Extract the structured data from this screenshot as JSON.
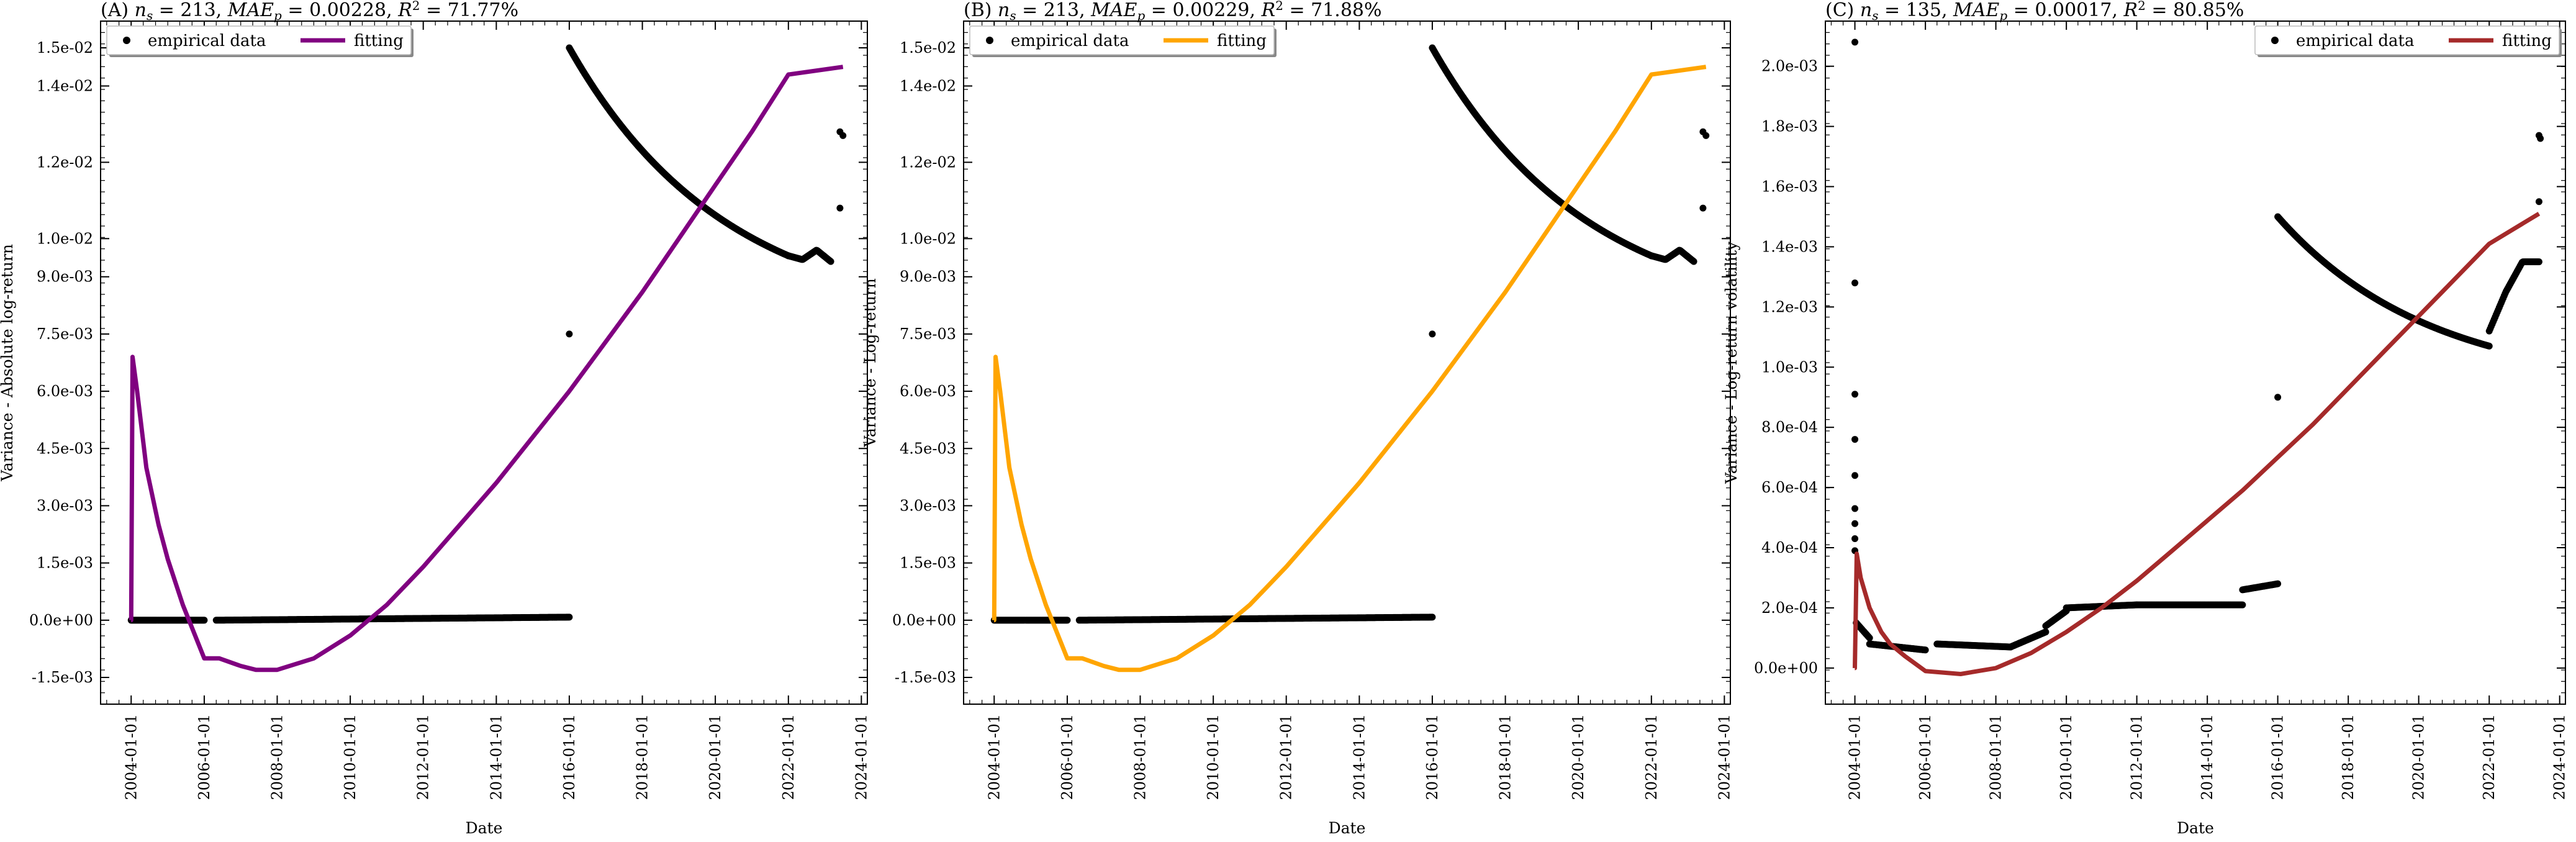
{
  "chart_data": [
    {
      "type": "scatter",
      "panel": "A",
      "title": "(A) n_s = 213, MAE_p = 0.00228, R² = 71.77%",
      "title_parts": {
        "prefix": "(A) ",
        "ns": "213",
        "mae": "0.00228",
        "r2": "71.77%"
      },
      "xlabel": "Date",
      "ylabel": "Variance - Absolute log-return",
      "x_ticks": [
        "2004-01-01",
        "2006-01-01",
        "2008-01-01",
        "2010-01-01",
        "2012-01-01",
        "2014-01-01",
        "2016-01-01",
        "2018-01-01",
        "2020-01-01",
        "2022-01-01",
        "2024-01-01"
      ],
      "y_ticks": [
        "-1.5e-03",
        "0.0e+00",
        "1.5e-03",
        "3.0e-03",
        "4.5e-03",
        "6.0e-03",
        "7.5e-03",
        "9.0e-03",
        "1.0e-02",
        "1.2e-02",
        "1.4e-02",
        "1.5e-02"
      ],
      "ylim": [
        -0.0022,
        0.0157
      ],
      "xlim": [
        "2003-03-01",
        "2024-03-01"
      ],
      "legend": {
        "placement": "top-left",
        "entries": [
          "empirical data",
          "fitting"
        ]
      },
      "fit_color": "#800080",
      "series": [
        {
          "name": "empirical data",
          "kind": "points",
          "segments": [
            {
              "from": "2004-01-01",
              "to": "2006-01-01",
              "y0": 0.0,
              "y1": 0.0
            },
            {
              "from": "2006-05-01",
              "to": "2016-01-01",
              "y0": 0.0,
              "y1": 8e-05
            }
          ],
          "decay": {
            "from": "2016-01-01",
            "to": "2022-01-01",
            "y0": 0.015,
            "y1": 0.00955,
            "end_from": "2022-01-01",
            "end_to": "2023-03-01",
            "end_y": [
              0.00955,
              0.00945,
              0.0097,
              0.0094
            ]
          },
          "isolated": [
            {
              "x": "2016-01-01",
              "y": 0.0075
            },
            {
              "x": "2023-06-01",
              "y": 0.0128
            },
            {
              "x": "2023-06-01",
              "y": 0.0108
            },
            {
              "x": "2023-07-01",
              "y": 0.0127
            }
          ]
        },
        {
          "name": "fitting",
          "kind": "line",
          "points": [
            [
              "2003-12-31",
              0.0
            ],
            [
              "2004-01-01",
              0.0
            ],
            [
              "2004-01-15",
              0.0069
            ],
            [
              "2004-03-01",
              0.006
            ],
            [
              "2004-06-01",
              0.004
            ],
            [
              "2004-10-01",
              0.0025
            ],
            [
              "2005-01-01",
              0.0016
            ],
            [
              "2005-06-01",
              0.0004
            ],
            [
              "2006-01-01",
              -0.001
            ],
            [
              "2006-06-01",
              -0.001
            ],
            [
              "2007-01-01",
              -0.0012
            ],
            [
              "2007-06-01",
              -0.0013
            ],
            [
              "2008-01-01",
              -0.0013
            ],
            [
              "2009-01-01",
              -0.001
            ],
            [
              "2010-01-01",
              -0.0004
            ],
            [
              "2011-01-01",
              0.0004
            ],
            [
              "2012-01-01",
              0.0014
            ],
            [
              "2013-01-01",
              0.0025
            ],
            [
              "2014-01-01",
              0.0036
            ],
            [
              "2015-01-01",
              0.0048
            ],
            [
              "2016-01-01",
              0.006
            ],
            [
              "2017-01-01",
              0.0073
            ],
            [
              "2018-01-01",
              0.0086
            ],
            [
              "2019-01-01",
              0.01
            ],
            [
              "2020-01-01",
              0.0114
            ],
            [
              "2021-01-01",
              0.0128
            ],
            [
              "2022-01-01",
              0.0143
            ],
            [
              "2023-07-01",
              0.0145
            ]
          ]
        }
      ]
    },
    {
      "type": "scatter",
      "panel": "B",
      "title": "(B) n_s = 213, MAE_p = 0.00229, R² = 71.88%",
      "title_parts": {
        "prefix": "(B) ",
        "ns": "213",
        "mae": "0.00229",
        "r2": "71.88%"
      },
      "xlabel": "Date",
      "ylabel": "Variance - Log-return",
      "x_ticks": [
        "2004-01-01",
        "2006-01-01",
        "2008-01-01",
        "2010-01-01",
        "2012-01-01",
        "2014-01-01",
        "2016-01-01",
        "2018-01-01",
        "2020-01-01",
        "2022-01-01",
        "2024-01-01"
      ],
      "y_ticks": [
        "-1.5e-03",
        "0.0e+00",
        "1.5e-03",
        "3.0e-03",
        "4.5e-03",
        "6.0e-03",
        "7.5e-03",
        "9.0e-03",
        "1.0e-02",
        "1.2e-02",
        "1.4e-02",
        "1.5e-02"
      ],
      "ylim": [
        -0.0022,
        0.0157
      ],
      "xlim": [
        "2003-03-01",
        "2024-03-01"
      ],
      "legend": {
        "placement": "top-left",
        "entries": [
          "empirical data",
          "fitting"
        ]
      },
      "fit_color": "#FFA500",
      "series": [
        {
          "name": "empirical data",
          "kind": "points",
          "segments": [
            {
              "from": "2004-01-01",
              "to": "2006-01-01",
              "y0": 0.0,
              "y1": 0.0
            },
            {
              "from": "2006-05-01",
              "to": "2016-01-01",
              "y0": 0.0,
              "y1": 8e-05
            }
          ],
          "decay": {
            "from": "2016-01-01",
            "to": "2022-01-01",
            "y0": 0.015,
            "y1": 0.00955,
            "end_from": "2022-01-01",
            "end_to": "2023-03-01",
            "end_y": [
              0.00955,
              0.00945,
              0.0097,
              0.0094
            ]
          },
          "isolated": [
            {
              "x": "2016-01-01",
              "y": 0.0075
            },
            {
              "x": "2023-06-01",
              "y": 0.0128
            },
            {
              "x": "2023-06-01",
              "y": 0.0108
            },
            {
              "x": "2023-07-01",
              "y": 0.0127
            }
          ]
        },
        {
          "name": "fitting",
          "kind": "line",
          "points": [
            [
              "2003-12-31",
              0.0
            ],
            [
              "2004-01-01",
              0.0
            ],
            [
              "2004-01-15",
              0.0069
            ],
            [
              "2004-03-01",
              0.006
            ],
            [
              "2004-06-01",
              0.004
            ],
            [
              "2004-10-01",
              0.0025
            ],
            [
              "2005-01-01",
              0.0016
            ],
            [
              "2005-06-01",
              0.0004
            ],
            [
              "2006-01-01",
              -0.001
            ],
            [
              "2006-06-01",
              -0.001
            ],
            [
              "2007-01-01",
              -0.0012
            ],
            [
              "2007-06-01",
              -0.0013
            ],
            [
              "2008-01-01",
              -0.0013
            ],
            [
              "2009-01-01",
              -0.001
            ],
            [
              "2010-01-01",
              -0.0004
            ],
            [
              "2011-01-01",
              0.0004
            ],
            [
              "2012-01-01",
              0.0014
            ],
            [
              "2013-01-01",
              0.0025
            ],
            [
              "2014-01-01",
              0.0036
            ],
            [
              "2015-01-01",
              0.0048
            ],
            [
              "2016-01-01",
              0.006
            ],
            [
              "2017-01-01",
              0.0073
            ],
            [
              "2018-01-01",
              0.0086
            ],
            [
              "2019-01-01",
              0.01
            ],
            [
              "2020-01-01",
              0.0114
            ],
            [
              "2021-01-01",
              0.0128
            ],
            [
              "2022-01-01",
              0.0143
            ],
            [
              "2023-07-01",
              0.0145
            ]
          ]
        }
      ]
    },
    {
      "type": "scatter",
      "panel": "C",
      "title": "(C) n_s = 135, MAE_p = 0.00017, R² = 80.85%",
      "title_parts": {
        "prefix": "(C) ",
        "ns": "135",
        "mae": "0.00017",
        "r2": "80.85%"
      },
      "xlabel": "Date",
      "ylabel": "Variance - Log-return volatility",
      "x_ticks": [
        "2004-01-01",
        "2006-01-01",
        "2008-01-01",
        "2010-01-01",
        "2012-01-01",
        "2014-01-01",
        "2016-01-01",
        "2018-01-01",
        "2020-01-01",
        "2022-01-01",
        "2024-01-01"
      ],
      "y_ticks": [
        "0.0e+00",
        "2.0e-04",
        "4.0e-04",
        "6.0e-04",
        "8.0e-04",
        "1.0e-03",
        "1.2e-03",
        "1.4e-03",
        "1.6e-03",
        "1.8e-03",
        "2.0e-03"
      ],
      "ylim": [
        -0.00012,
        0.00215
      ],
      "xlim": [
        "2003-03-01",
        "2024-03-01"
      ],
      "legend": {
        "placement": "top-right",
        "entries": [
          "empirical data",
          "fitting"
        ]
      },
      "fit_color": "#A52A2A",
      "series": [
        {
          "name": "empirical data",
          "kind": "points",
          "segments": [
            {
              "from": "2004-01-15",
              "to": "2004-06-01",
              "y0": 0.00015,
              "y1": 0.0001
            },
            {
              "from": "2004-06-01",
              "to": "2006-01-01",
              "y0": 8e-05,
              "y1": 6e-05
            },
            {
              "from": "2006-05-01",
              "to": "2008-06-01",
              "y0": 8e-05,
              "y1": 7e-05
            },
            {
              "from": "2008-06-01",
              "to": "2009-06-01",
              "y0": 7e-05,
              "y1": 0.00012
            },
            {
              "from": "2009-06-01",
              "to": "2010-01-01",
              "y0": 0.00014,
              "y1": 0.00019
            },
            {
              "from": "2010-01-01",
              "to": "2012-01-01",
              "y0": 0.0002,
              "y1": 0.00021
            },
            {
              "from": "2012-01-01",
              "to": "2015-01-01",
              "y0": 0.00021,
              "y1": 0.00021
            },
            {
              "from": "2015-01-01",
              "to": "2016-01-01",
              "y0": 0.00026,
              "y1": 0.00028
            }
          ],
          "decay": {
            "from": "2016-01-01",
            "to": "2022-01-01",
            "y0": 0.0015,
            "y1": 0.00107,
            "end_from": "2022-01-01",
            "end_to": "2023-06-01",
            "end_y": [
              0.00112,
              0.00125,
              0.00135,
              0.00135
            ]
          },
          "isolated": [
            {
              "x": "2004-01-01",
              "y": 0.00208
            },
            {
              "x": "2004-01-01",
              "y": 0.00128
            },
            {
              "x": "2004-01-01",
              "y": 0.00091
            },
            {
              "x": "2004-01-01",
              "y": 0.00076
            },
            {
              "x": "2004-01-01",
              "y": 0.00064
            },
            {
              "x": "2004-01-01",
              "y": 0.00053
            },
            {
              "x": "2004-01-01",
              "y": 0.00048
            },
            {
              "x": "2004-01-01",
              "y": 0.00043
            },
            {
              "x": "2004-01-01",
              "y": 0.00039
            },
            {
              "x": "2016-01-01",
              "y": 0.0009
            },
            {
              "x": "2023-06-01",
              "y": 0.00177
            },
            {
              "x": "2023-06-15",
              "y": 0.00176
            },
            {
              "x": "2023-06-01",
              "y": 0.00155
            }
          ]
        },
        {
          "name": "fitting",
          "kind": "line",
          "points": [
            [
              "2003-12-31",
              0.0
            ],
            [
              "2004-01-01",
              0.0
            ],
            [
              "2004-01-20",
              0.00038
            ],
            [
              "2004-03-01",
              0.0003
            ],
            [
              "2004-06-01",
              0.0002
            ],
            [
              "2004-10-01",
              0.00012
            ],
            [
              "2005-01-01",
              8e-05
            ],
            [
              "2005-06-01",
              4e-05
            ],
            [
              "2006-01-01",
              -1e-05
            ],
            [
              "2007-01-01",
              -2e-05
            ],
            [
              "2008-01-01",
              0.0
            ],
            [
              "2009-01-01",
              5e-05
            ],
            [
              "2010-01-01",
              0.00012
            ],
            [
              "2011-01-01",
              0.0002
            ],
            [
              "2012-01-01",
              0.00029
            ],
            [
              "2013-01-01",
              0.00039
            ],
            [
              "2014-01-01",
              0.00049
            ],
            [
              "2015-01-01",
              0.00059
            ],
            [
              "2016-01-01",
              0.0007
            ],
            [
              "2017-01-01",
              0.00081
            ],
            [
              "2018-01-01",
              0.00093
            ],
            [
              "2019-01-01",
              0.00105
            ],
            [
              "2020-01-01",
              0.00117
            ],
            [
              "2021-01-01",
              0.00129
            ],
            [
              "2022-01-01",
              0.00141
            ],
            [
              "2023-06-01",
              0.00151
            ]
          ]
        }
      ]
    }
  ]
}
